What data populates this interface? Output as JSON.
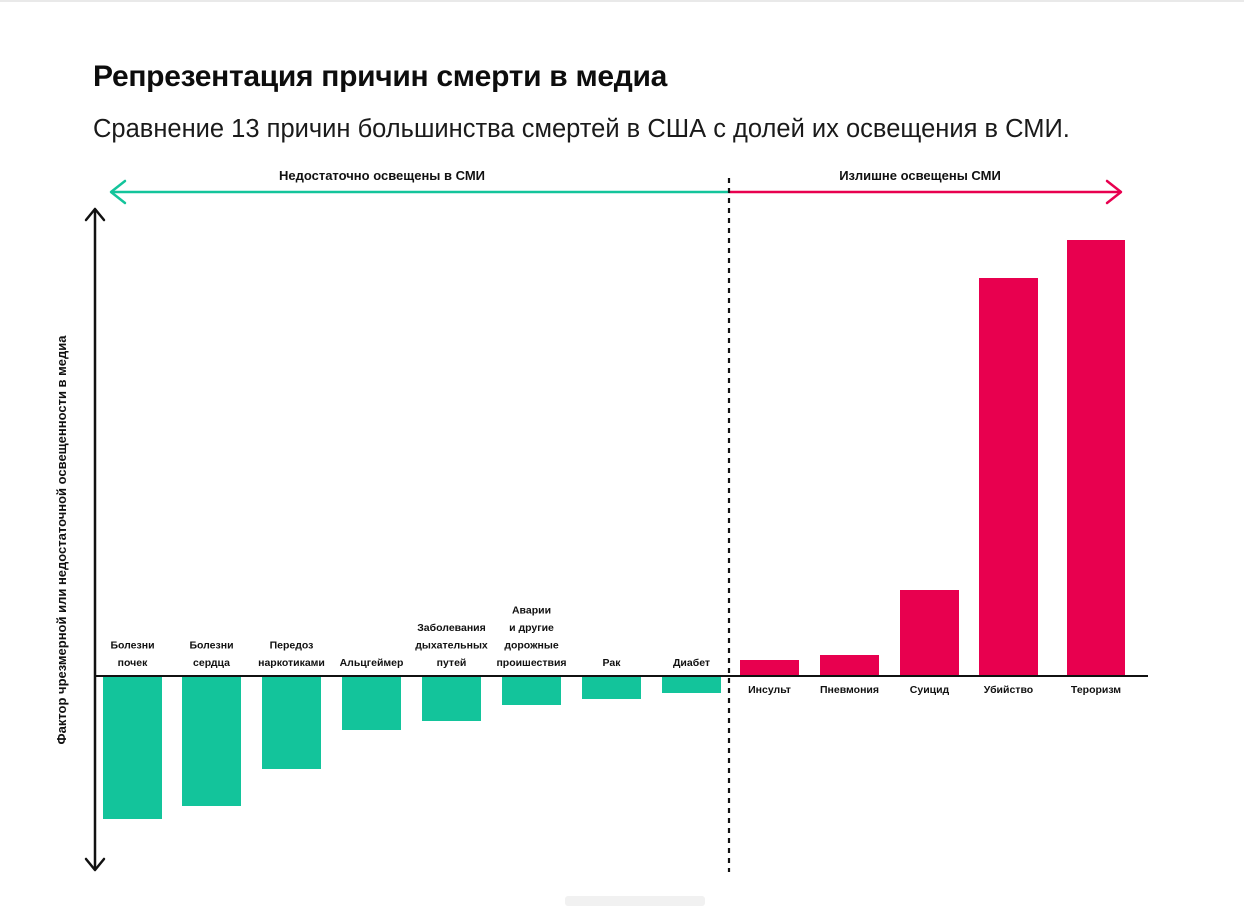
{
  "header": {
    "title": "Репрезентация причин смерти в медиа",
    "subtitle": "Сравнение 13 причин большинства смертей в США с долей их освещения в СМИ."
  },
  "chart_data": {
    "type": "bar",
    "ylabel": "Фактор чрезмерной или недостаточной освещенности в медиа",
    "region_labels": {
      "under": "Недостаточно освещены в СМИ",
      "over": "Излишне освещены СМИ"
    },
    "colors": {
      "under": "#13c49b",
      "over": "#e8004f"
    },
    "categories": [
      [
        "Болезни",
        "почек"
      ],
      [
        "Болезни",
        "сердца"
      ],
      [
        "Передоз",
        "наркотиками"
      ],
      [
        "Альцгеймер"
      ],
      [
        "Заболевания",
        "дыхательных",
        "путей"
      ],
      [
        "Аварии",
        "и другие",
        "дорожные",
        "проишествия"
      ],
      [
        "Рак"
      ],
      [
        "Диабет"
      ],
      [
        "Инсульт"
      ],
      [
        "Пневмония"
      ],
      [
        "Суицид"
      ],
      [
        "Убийство"
      ],
      [
        "Тероризм"
      ]
    ],
    "values": [
      -14.3,
      -13,
      -9.3,
      -5.4,
      -4.5,
      -2.9,
      -2.3,
      -1.7,
      1.6,
      2.1,
      8.6,
      39.8,
      43.6
    ],
    "ylim": [
      -20,
      47
    ],
    "grid": false,
    "legend": "none"
  }
}
